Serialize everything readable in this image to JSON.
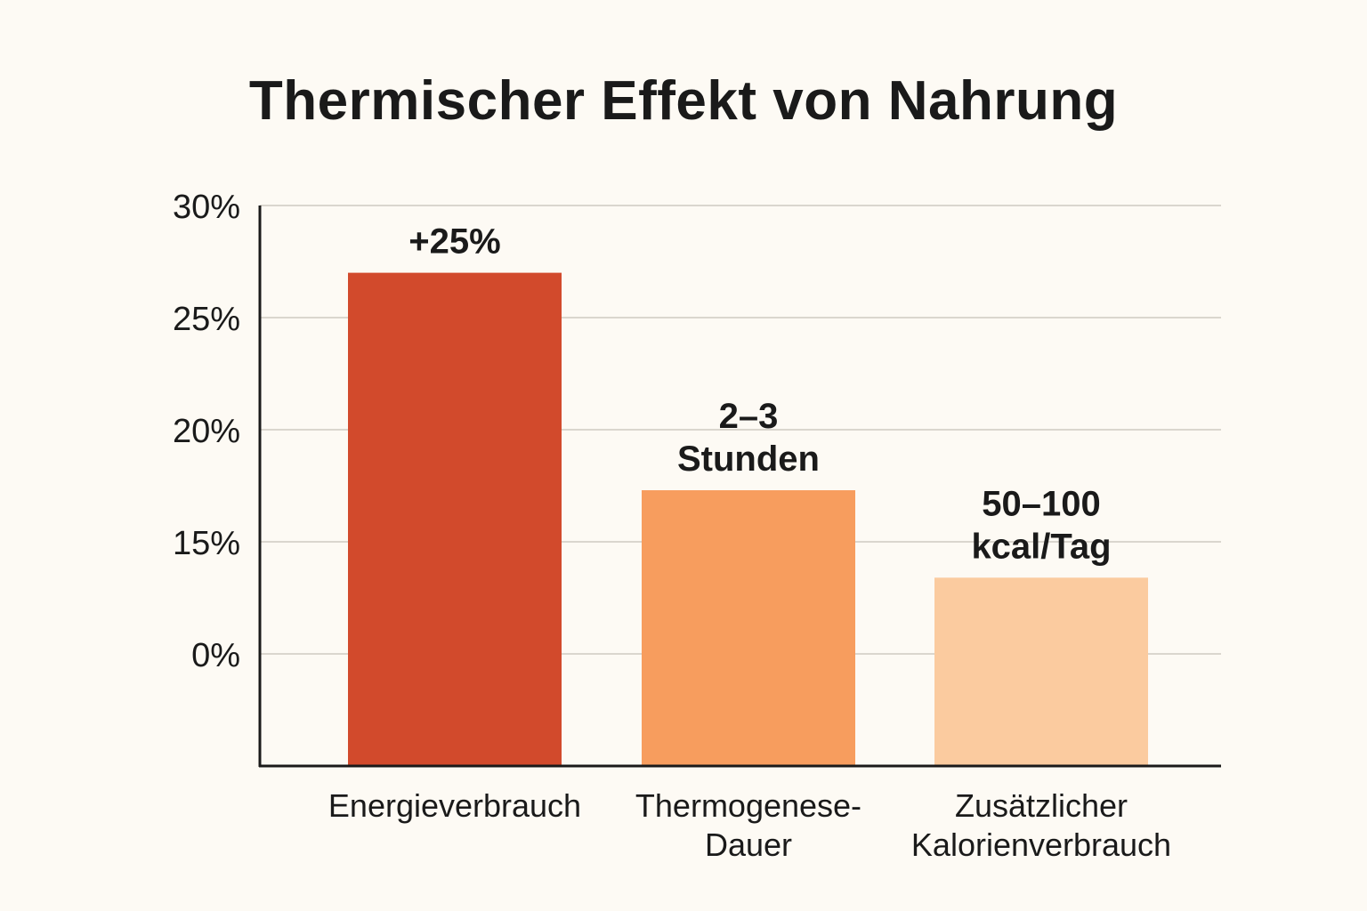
{
  "chart_data": {
    "type": "bar",
    "title": "Thermischer Effekt von Nahrung",
    "xlabel": "",
    "ylabel": "",
    "y_tick_labels": [
      "0%",
      "15%",
      "20%",
      "25%",
      "30%"
    ],
    "categories": [
      [
        "Energieverbrauch"
      ],
      [
        "Thermogenese-",
        "Dauer"
      ],
      [
        "Zusätzlicher",
        "Kalorienverbrauch"
      ]
    ],
    "values": [
      27,
      17.3,
      13.4
    ],
    "data_labels": [
      [
        "+25%"
      ],
      [
        "2–3",
        "Stunden"
      ],
      [
        "50–100",
        "kcal/Tag"
      ]
    ],
    "colors": [
      "#d24a2c",
      "#f79d5e",
      "#fbcb9f"
    ],
    "grid": true,
    "legend": "none"
  }
}
